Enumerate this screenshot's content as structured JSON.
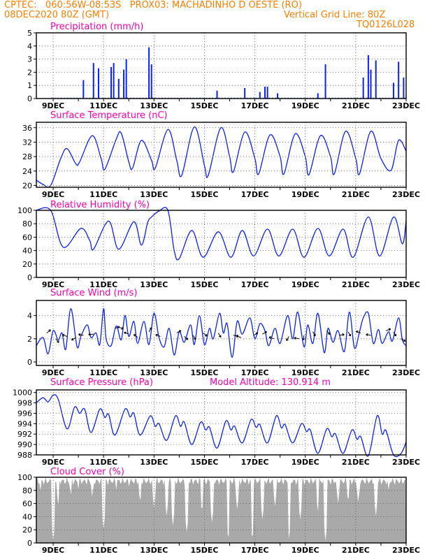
{
  "header": {
    "line1": "CPTEC:   060:56W-08:53S   PROX03: MACHADINHO D OESTE (RO)",
    "line2_left": "08DEC2020 80Z (GMT)",
    "line2_right": "Vertical Grid Line: 80Z",
    "line3_right": "TQ0126L028",
    "color": "#ff7f00"
  },
  "colors": {
    "title": "#ff00b0",
    "series": "#0a20ff",
    "cloud": "#a9a9a9",
    "frame": "#000000",
    "grid": "#555555"
  },
  "x_tick_labels": [
    "9DEC",
    "11DEC",
    "13DEC",
    "15DEC",
    "17DEC",
    "19DEC",
    "21DEC",
    "23DEC"
  ],
  "chart_data": [
    {
      "type": "bar",
      "title": "Precipitation (mm/h)",
      "y_ticks": [
        "0",
        "1",
        "2",
        "3",
        "4",
        "5"
      ],
      "ylim": [
        0,
        5
      ],
      "x_range_days": [
        8.33,
        23.0
      ],
      "peaks": [
        {
          "x": 10.2,
          "value": 1.4
        },
        {
          "x": 10.6,
          "value": 2.7
        },
        {
          "x": 10.8,
          "value": 2.3
        },
        {
          "x": 11.3,
          "value": 2.4
        },
        {
          "x": 11.4,
          "value": 2.7
        },
        {
          "x": 11.6,
          "value": 1.5
        },
        {
          "x": 11.8,
          "value": 2.2
        },
        {
          "x": 11.9,
          "value": 3.0
        },
        {
          "x": 12.8,
          "value": 3.9
        },
        {
          "x": 12.9,
          "value": 2.6
        },
        {
          "x": 15.5,
          "value": 0.6
        },
        {
          "x": 16.6,
          "value": 0.8
        },
        {
          "x": 17.2,
          "value": 0.5
        },
        {
          "x": 17.4,
          "value": 0.9
        },
        {
          "x": 17.5,
          "value": 0.9
        },
        {
          "x": 17.9,
          "value": 0.4
        },
        {
          "x": 19.5,
          "value": 0.4
        },
        {
          "x": 19.8,
          "value": 2.6
        },
        {
          "x": 21.3,
          "value": 1.6
        },
        {
          "x": 21.5,
          "value": 3.3
        },
        {
          "x": 21.6,
          "value": 2.2
        },
        {
          "x": 21.8,
          "value": 2.9
        },
        {
          "x": 22.5,
          "value": 1.2
        },
        {
          "x": 22.7,
          "value": 2.8
        },
        {
          "x": 22.9,
          "value": 1.6
        }
      ]
    },
    {
      "type": "line",
      "title": "Surface Temperature (nC)",
      "y_ticks": [
        "20",
        "24",
        "28",
        "32",
        "36"
      ],
      "ylim": [
        19.5,
        37.5
      ],
      "points": [
        [
          8.33,
          21.5
        ],
        [
          8.6,
          20.3
        ],
        [
          8.9,
          20.0
        ],
        [
          9.3,
          27.5
        ],
        [
          9.55,
          30.2
        ],
        [
          9.9,
          26.0
        ],
        [
          10.05,
          26.5
        ],
        [
          10.55,
          33.8
        ],
        [
          10.9,
          27.5
        ],
        [
          11.05,
          24.5
        ],
        [
          11.5,
          32.8
        ],
        [
          11.7,
          34.5
        ],
        [
          12.0,
          26.5
        ],
        [
          12.15,
          24.8
        ],
        [
          12.5,
          32.5
        ],
        [
          12.9,
          27.0
        ],
        [
          13.05,
          24.8
        ],
        [
          13.55,
          35.5
        ],
        [
          13.9,
          27.0
        ],
        [
          14.1,
          22.8
        ],
        [
          14.6,
          36.2
        ],
        [
          15.0,
          25.5
        ],
        [
          15.15,
          22.8
        ],
        [
          15.65,
          36.0
        ],
        [
          16.0,
          28.0
        ],
        [
          16.15,
          23.8
        ],
        [
          16.6,
          34.8
        ],
        [
          17.0,
          27.5
        ],
        [
          17.15,
          23.2
        ],
        [
          17.6,
          34.0
        ],
        [
          18.0,
          28.0
        ],
        [
          18.15,
          23.2
        ],
        [
          18.6,
          34.3
        ],
        [
          19.0,
          28.0
        ],
        [
          19.15,
          23.0
        ],
        [
          19.6,
          33.8
        ],
        [
          20.0,
          28.0
        ],
        [
          20.15,
          23.2
        ],
        [
          20.6,
          35.0
        ],
        [
          21.0,
          27.5
        ],
        [
          21.15,
          23.2
        ],
        [
          21.6,
          35.0
        ],
        [
          22.0,
          27.5
        ],
        [
          22.4,
          24.2
        ],
        [
          22.7,
          32.5
        ],
        [
          23.0,
          29.5
        ]
      ]
    },
    {
      "type": "line",
      "title": "Relative Humidity (%)",
      "y_ticks": [
        "0",
        "20",
        "40",
        "60",
        "80",
        "100"
      ],
      "ylim": [
        0,
        100
      ],
      "points": [
        [
          8.33,
          100
        ],
        [
          8.9,
          100
        ],
        [
          9.4,
          45
        ],
        [
          10.1,
          73
        ],
        [
          10.45,
          55
        ],
        [
          10.6,
          42
        ],
        [
          11.2,
          84
        ],
        [
          11.6,
          42
        ],
        [
          12.2,
          83
        ],
        [
          12.5,
          48
        ],
        [
          12.75,
          82
        ],
        [
          12.9,
          90
        ],
        [
          13.2,
          99
        ],
        [
          13.55,
          100
        ],
        [
          13.8,
          40
        ],
        [
          14.0,
          28
        ],
        [
          14.5,
          70
        ],
        [
          14.95,
          30
        ],
        [
          15.55,
          68
        ],
        [
          16.05,
          30
        ],
        [
          16.5,
          70
        ],
        [
          16.95,
          32
        ],
        [
          17.5,
          72
        ],
        [
          17.95,
          32
        ],
        [
          18.5,
          72
        ],
        [
          18.95,
          30
        ],
        [
          19.5,
          73
        ],
        [
          19.95,
          32
        ],
        [
          20.5,
          72
        ],
        [
          20.9,
          30
        ],
        [
          21.5,
          90
        ],
        [
          21.95,
          32
        ],
        [
          22.5,
          90
        ],
        [
          22.85,
          50
        ],
        [
          23.0,
          85
        ]
      ]
    },
    {
      "type": "line",
      "title": "Surface Wind (m/s)",
      "y_ticks": [
        "0",
        "2",
        "4"
      ],
      "ylim": [
        -0.3,
        5.3
      ],
      "points": [
        [
          8.33,
          1.4
        ],
        [
          8.6,
          2.1
        ],
        [
          8.8,
          0.7
        ],
        [
          9.0,
          2.7
        ],
        [
          9.2,
          1.9
        ],
        [
          9.35,
          2.5
        ],
        [
          9.5,
          1.1
        ],
        [
          9.7,
          4.6
        ],
        [
          9.95,
          1.3
        ],
        [
          10.1,
          2.2
        ],
        [
          10.35,
          3.2
        ],
        [
          10.5,
          2.1
        ],
        [
          10.7,
          2.5
        ],
        [
          10.85,
          1.5
        ],
        [
          11.0,
          4.6
        ],
        [
          11.1,
          2.0
        ],
        [
          11.3,
          1.4
        ],
        [
          11.5,
          3.1
        ],
        [
          11.7,
          1.9
        ],
        [
          11.85,
          4.0
        ],
        [
          12.0,
          2.2
        ],
        [
          12.2,
          3.5
        ],
        [
          12.35,
          1.6
        ],
        [
          12.6,
          3.5
        ],
        [
          12.8,
          1.5
        ],
        [
          13.0,
          4.2
        ],
        [
          13.2,
          2.1
        ],
        [
          13.4,
          1.3
        ],
        [
          13.6,
          2.9
        ],
        [
          13.8,
          0.6
        ],
        [
          14.0,
          2.6
        ],
        [
          14.2,
          1.7
        ],
        [
          14.45,
          3.2
        ],
        [
          14.6,
          1.5
        ],
        [
          14.8,
          4.0
        ],
        [
          15.0,
          1.5
        ],
        [
          15.2,
          2.9
        ],
        [
          15.35,
          2.0
        ],
        [
          15.6,
          4.2
        ],
        [
          15.75,
          2.5
        ],
        [
          15.9,
          3.3
        ],
        [
          16.1,
          0.4
        ],
        [
          16.3,
          3.5
        ],
        [
          16.5,
          2.4
        ],
        [
          16.8,
          3.8
        ],
        [
          17.0,
          2.0
        ],
        [
          17.2,
          3.3
        ],
        [
          17.4,
          2.7
        ],
        [
          17.55,
          1.4
        ],
        [
          17.8,
          2.9
        ],
        [
          18.0,
          1.6
        ],
        [
          18.3,
          4.0
        ],
        [
          18.5,
          2.0
        ],
        [
          18.7,
          4.3
        ],
        [
          18.95,
          1.3
        ],
        [
          19.1,
          3.2
        ],
        [
          19.3,
          1.6
        ],
        [
          19.5,
          4.2
        ],
        [
          19.75,
          0.8
        ],
        [
          19.9,
          2.9
        ],
        [
          20.1,
          1.7
        ],
        [
          20.3,
          2.7
        ],
        [
          20.55,
          0.9
        ],
        [
          20.75,
          4.3
        ],
        [
          20.95,
          1.2
        ],
        [
          21.15,
          2.6
        ],
        [
          21.3,
          3.8
        ],
        [
          21.5,
          4.2
        ],
        [
          21.7,
          1.6
        ],
        [
          21.9,
          2.8
        ],
        [
          22.05,
          1.6
        ],
        [
          22.3,
          2.6
        ],
        [
          22.45,
          1.8
        ],
        [
          22.7,
          3.8
        ],
        [
          22.85,
          1.9
        ],
        [
          23.0,
          1.4
        ]
      ]
    },
    {
      "type": "line",
      "title": "Surface Pressure (hPa)",
      "subtitle": "Model Altitude: 130.914 m",
      "y_ticks": [
        "988",
        "990",
        "992",
        "994",
        "996",
        "998",
        "1000"
      ],
      "ylim": [
        988,
        1000.5
      ],
      "points": [
        [
          8.33,
          998.0
        ],
        [
          8.6,
          999.0
        ],
        [
          8.8,
          998.2
        ],
        [
          9.0,
          999.5
        ],
        [
          9.2,
          998.7
        ],
        [
          9.55,
          993.0
        ],
        [
          9.85,
          997.2
        ],
        [
          10.05,
          996.0
        ],
        [
          10.25,
          996.8
        ],
        [
          10.5,
          992.3
        ],
        [
          10.85,
          996.8
        ],
        [
          11.05,
          995.2
        ],
        [
          11.2,
          995.8
        ],
        [
          11.45,
          991.8
        ],
        [
          11.85,
          996.8
        ],
        [
          12.05,
          995.3
        ],
        [
          12.2,
          996.0
        ],
        [
          12.45,
          991.8
        ],
        [
          12.85,
          995.5
        ],
        [
          13.05,
          993.5
        ],
        [
          13.2,
          994.0
        ],
        [
          13.5,
          990.8
        ],
        [
          13.85,
          995.5
        ],
        [
          14.05,
          993.5
        ],
        [
          14.2,
          994.3
        ],
        [
          14.5,
          990.0
        ],
        [
          14.85,
          994.3
        ],
        [
          15.05,
          992.8
        ],
        [
          15.2,
          993.3
        ],
        [
          15.5,
          989.3
        ],
        [
          15.85,
          994.5
        ],
        [
          16.05,
          992.8
        ],
        [
          16.2,
          993.5
        ],
        [
          16.5,
          990.3
        ],
        [
          16.85,
          994.8
        ],
        [
          17.05,
          993.3
        ],
        [
          17.2,
          993.8
        ],
        [
          17.5,
          990.3
        ],
        [
          17.85,
          995.5
        ],
        [
          18.05,
          993.2
        ],
        [
          18.2,
          993.8
        ],
        [
          18.5,
          990.3
        ],
        [
          18.85,
          994.0
        ],
        [
          19.05,
          992.5
        ],
        [
          19.2,
          992.8
        ],
        [
          19.5,
          988.3
        ],
        [
          19.85,
          993.0
        ],
        [
          20.05,
          991.5
        ],
        [
          20.2,
          992.0
        ],
        [
          20.5,
          988.3
        ],
        [
          20.85,
          992.8
        ],
        [
          21.05,
          991.0
        ],
        [
          21.2,
          991.5
        ],
        [
          21.5,
          987.8
        ],
        [
          21.85,
          995.5
        ],
        [
          22.05,
          992.0
        ],
        [
          22.2,
          992.7
        ],
        [
          22.5,
          988.0
        ],
        [
          22.8,
          988.3
        ],
        [
          23.0,
          990.5
        ]
      ]
    },
    {
      "type": "bar",
      "title": "Cloud Cover (%)",
      "y_ticks": [
        "0",
        "20",
        "40",
        "60",
        "80",
        "100"
      ],
      "ylim": [
        0,
        100
      ],
      "typical_value": 94,
      "dips": [
        {
          "x": 8.5,
          "value": 80
        },
        {
          "x": 9.0,
          "value": 3
        },
        {
          "x": 9.2,
          "value": 55
        },
        {
          "x": 9.7,
          "value": 70
        },
        {
          "x": 10.0,
          "value": 82
        },
        {
          "x": 10.55,
          "value": 68
        },
        {
          "x": 11.0,
          "value": 20
        },
        {
          "x": 11.5,
          "value": 80
        },
        {
          "x": 12.0,
          "value": 85
        },
        {
          "x": 12.45,
          "value": 60
        },
        {
          "x": 13.0,
          "value": 52
        },
        {
          "x": 13.5,
          "value": 40
        },
        {
          "x": 13.75,
          "value": 25
        },
        {
          "x": 14.3,
          "value": 15
        },
        {
          "x": 14.9,
          "value": 45
        },
        {
          "x": 15.3,
          "value": 30
        },
        {
          "x": 15.95,
          "value": 3
        },
        {
          "x": 16.3,
          "value": 50
        },
        {
          "x": 16.9,
          "value": 3
        },
        {
          "x": 17.3,
          "value": 35
        },
        {
          "x": 17.8,
          "value": 55
        },
        {
          "x": 18.35,
          "value": 3
        },
        {
          "x": 18.8,
          "value": 35
        },
        {
          "x": 19.5,
          "value": 45
        },
        {
          "x": 19.8,
          "value": 3
        },
        {
          "x": 20.3,
          "value": 60
        },
        {
          "x": 20.7,
          "value": 60
        },
        {
          "x": 21.1,
          "value": 60
        },
        {
          "x": 21.8,
          "value": 40
        },
        {
          "x": 22.3,
          "value": 80
        },
        {
          "x": 22.7,
          "value": 85
        }
      ]
    }
  ]
}
